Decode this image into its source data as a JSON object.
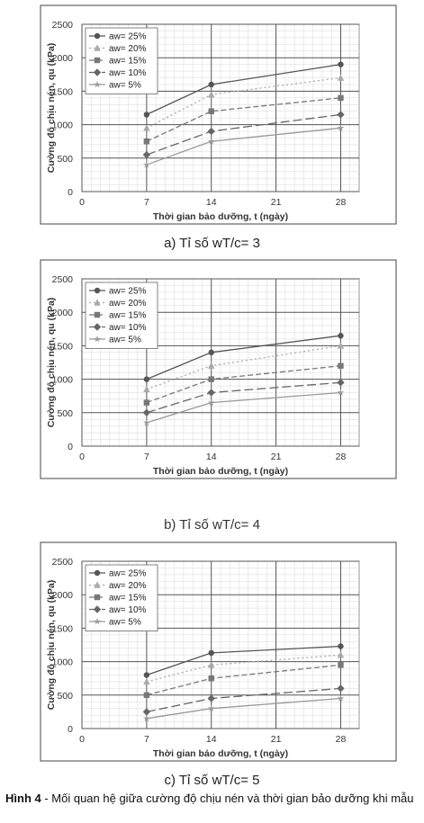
{
  "chart_data": [
    {
      "type": "line",
      "x": [
        7,
        14,
        28
      ],
      "xticks": [
        0,
        7,
        14,
        21,
        28
      ],
      "yticks": [
        0,
        500,
        1000,
        1500,
        2000,
        2500
      ],
      "xlim": [
        0,
        30
      ],
      "ylim": [
        0,
        2500
      ],
      "xlabel": "Thời gian bảo dưỡng, t (ngày)",
      "ylabel": "Cường độ chịu nén, qu (kPa)",
      "legend": "top-left",
      "grid": true,
      "series": [
        {
          "name": "aw= 25%",
          "values": [
            1150,
            1600,
            1900
          ],
          "color": "#555555",
          "marker": "circle",
          "dash": ""
        },
        {
          "name": "aw= 20%",
          "values": [
            950,
            1450,
            1700
          ],
          "color": "#aaaaaa",
          "marker": "triangle",
          "dash": "2,3"
        },
        {
          "name": "aw= 15%",
          "values": [
            750,
            1200,
            1400
          ],
          "color": "#777777",
          "marker": "square",
          "dash": "6,3"
        },
        {
          "name": "aw= 10%",
          "values": [
            550,
            900,
            1150
          ],
          "color": "#666666",
          "marker": "diamond",
          "dash": "10,4"
        },
        {
          "name": "aw= 5%",
          "values": [
            400,
            750,
            950
          ],
          "color": "#999999",
          "marker": "star",
          "dash": ""
        }
      ],
      "caption": "a)        Tỉ số wT/c= 3"
    },
    {
      "type": "line",
      "x": [
        7,
        14,
        28
      ],
      "xticks": [
        0,
        7,
        14,
        21,
        28
      ],
      "yticks": [
        0,
        500,
        1000,
        1500,
        2000,
        2500
      ],
      "xlim": [
        0,
        30
      ],
      "ylim": [
        0,
        2500
      ],
      "xlabel": "Thời gian bảo dưỡng, t (ngày)",
      "ylabel": "Cường độ chịu nén, qu (kPa)",
      "legend": "top-left",
      "grid": true,
      "series": [
        {
          "name": "aw= 25%",
          "values": [
            1000,
            1400,
            1650
          ],
          "color": "#555555",
          "marker": "circle",
          "dash": ""
        },
        {
          "name": "aw= 20%",
          "values": [
            850,
            1200,
            1500
          ],
          "color": "#aaaaaa",
          "marker": "triangle",
          "dash": "2,3"
        },
        {
          "name": "aw= 15%",
          "values": [
            650,
            1000,
            1200
          ],
          "color": "#777777",
          "marker": "square",
          "dash": "6,3"
        },
        {
          "name": "aw= 10%",
          "values": [
            500,
            800,
            950
          ],
          "color": "#666666",
          "marker": "diamond",
          "dash": "10,4"
        },
        {
          "name": "aw= 5%",
          "values": [
            350,
            650,
            800
          ],
          "color": "#999999",
          "marker": "star",
          "dash": ""
        }
      ],
      "caption": "b) Tỉ số wT/c= 4"
    },
    {
      "type": "line",
      "x": [
        7,
        14,
        28
      ],
      "xticks": [
        0,
        7,
        14,
        21,
        28
      ],
      "yticks": [
        0,
        500,
        1000,
        1500,
        2000,
        2500
      ],
      "xlim": [
        0,
        30
      ],
      "ylim": [
        0,
        2500
      ],
      "xlabel": "Thời gian bảo dưỡng, t (ngày)",
      "ylabel": "Cường độ chịu nén, qu (kPa)",
      "legend": "top-left",
      "grid": true,
      "series": [
        {
          "name": "aw= 25%",
          "values": [
            800,
            1130,
            1230
          ],
          "color": "#555555",
          "marker": "circle",
          "dash": ""
        },
        {
          "name": "aw= 20%",
          "values": [
            700,
            950,
            1100
          ],
          "color": "#aaaaaa",
          "marker": "triangle",
          "dash": "2,3"
        },
        {
          "name": "aw= 15%",
          "values": [
            500,
            750,
            950
          ],
          "color": "#777777",
          "marker": "square",
          "dash": "6,3"
        },
        {
          "name": "aw= 10%",
          "values": [
            250,
            450,
            600
          ],
          "color": "#666666",
          "marker": "diamond",
          "dash": "10,4"
        },
        {
          "name": "aw= 5%",
          "values": [
            150,
            300,
            450
          ],
          "color": "#999999",
          "marker": "star",
          "dash": ""
        }
      ],
      "caption": "c) Tỉ số wT/c= 5"
    }
  ],
  "figure_caption": {
    "label": "Hình 4",
    "text": " - Mối quan hệ giữa cường độ chịu nén và thời gian bảo dưỡng khi mẫu"
  }
}
